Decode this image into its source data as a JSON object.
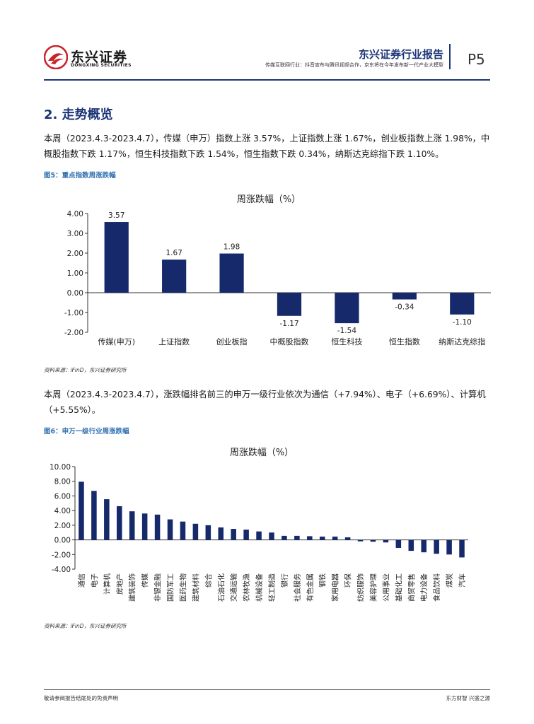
{
  "header": {
    "logo_name": "东兴证券",
    "logo_sub": "DONGXING SECURITIES",
    "report_type": "东兴证券行业报告",
    "report_desc": "传媒互联网行业：抖音宣布与腾讯视频合作，京东将在今年发布新一代产业大模型",
    "page": "P5"
  },
  "section_title": "2. 走势概览",
  "para1": "本周（2023.4.3-2023.4.7），传媒（申万）指数上涨 3.57%，上证指数上涨 1.67%，创业板指数上涨 1.98%，中概股指数下跌 1.17%，恒生科技指数下跌 1.54%，恒生指数下跌 0.34%，纳斯达克综指下跌 1.10%。",
  "fig5_label": "图5：重点指数周涨跌幅",
  "fig5_source": "资料来源：iFinD，东兴证券研究所",
  "para2": "本周（2023.4.3-2023.4.7），涨跌幅排名前三的申万一级行业依次为通信（+7.94%）、电子（+6.69%）、计算机（+5.55%）。",
  "fig6_label": "图6：申万一级行业周涨跌幅",
  "fig6_source": "资料来源：iFinD，东兴证券研究所",
  "footer": {
    "left": "敬请参阅报告结尾处的免责声明",
    "right": "东方财智 兴盛之源"
  },
  "colors": {
    "brand": "#1c3577",
    "bar": "#15296b",
    "figlabel": "#2e6fb0",
    "logo_red": "#c8242b"
  },
  "chart_data": [
    {
      "type": "bar",
      "title": "周涨跌幅（%）",
      "categories": [
        "传媒(申万)",
        "上证指数",
        "创业板指",
        "中概股指数",
        "恒生科技",
        "恒生指数",
        "纳斯达克综指"
      ],
      "values": [
        3.57,
        1.67,
        1.98,
        -1.17,
        -1.54,
        -0.34,
        -1.1
      ],
      "data_labels": [
        "3.57",
        "1.67",
        "1.98",
        "-1.17",
        "-1.54",
        "-0.34",
        "-1.10"
      ],
      "ylim": [
        -2.0,
        4.0
      ],
      "yticks": [
        "4.00",
        "3.00",
        "2.00",
        "1.00",
        "0.00",
        "-1.00",
        "-2.00"
      ],
      "ytick_values": [
        4,
        3,
        2,
        1,
        0,
        -1,
        -2
      ],
      "grid": false,
      "legend": "none"
    },
    {
      "type": "bar",
      "title": "周涨跌幅（%）",
      "categories": [
        "通信",
        "电子",
        "计算机",
        "房地产",
        "建筑装饰",
        "传媒",
        "非银金融",
        "国防军工",
        "医药生物",
        "建筑材料",
        "综合",
        "石油石化",
        "交通运输",
        "农林牧渔",
        "机械设备",
        "轻工制造",
        "银行",
        "社会服务",
        "有色金属",
        "钢铁",
        "家用电器",
        "环保",
        "纺织服饰",
        "美容护理",
        "公用事业",
        "基础化工",
        "商贸零售",
        "电力设备",
        "食品饮料",
        "煤炭",
        "汽车"
      ],
      "values": [
        7.94,
        6.69,
        5.55,
        4.6,
        3.9,
        3.6,
        3.45,
        2.8,
        2.5,
        2.2,
        2.0,
        1.7,
        1.5,
        1.4,
        1.15,
        1.0,
        0.55,
        0.55,
        0.5,
        0.45,
        0.45,
        0.35,
        -0.2,
        -0.25,
        -0.35,
        -1.1,
        -1.5,
        -1.7,
        -1.9,
        -2.0,
        -2.4
      ],
      "ylim": [
        -4.0,
        10.0
      ],
      "yticks": [
        "10.00",
        "8.00",
        "6.00",
        "4.00",
        "2.00",
        "0.00",
        "-2.00",
        "-4.00"
      ],
      "ytick_values": [
        10,
        8,
        6,
        4,
        2,
        0,
        -2,
        -4
      ],
      "grid": false,
      "legend": "none"
    }
  ]
}
